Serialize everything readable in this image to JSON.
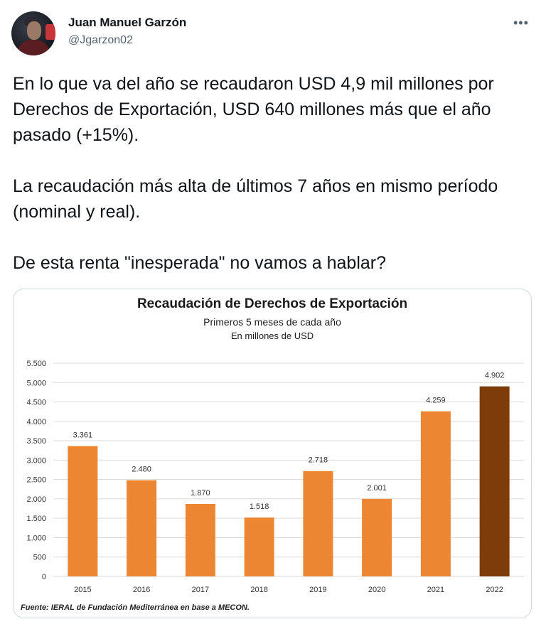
{
  "tweet": {
    "author_name": "Juan Manuel Garzón",
    "handle": "@Jgarzon02",
    "more_icon": "more-icon",
    "paragraphs": [
      "En lo que va del año se recaudaron USD 4,9 mil millones por Derechos de Exportación, USD 640 millones más que el año pasado (+15%).",
      "La recaudación más alta de últimos 7 años en mismo período (nominal y real).",
      "De esta renta \"inesperada\" no vamos a hablar?"
    ]
  },
  "chart": {
    "title": "Recaudación de Derechos de Exportación",
    "subtitle": "Primeros 5 meses de cada año",
    "unit": "En millones de USD",
    "source": "Fuente: IERAL de Fundación Mediterránea en base a MECON."
  },
  "chart_data": {
    "type": "bar",
    "categories": [
      "2015",
      "2016",
      "2017",
      "2018",
      "2019",
      "2020",
      "2021",
      "2022"
    ],
    "values": [
      3361,
      2480,
      1870,
      1518,
      2718,
      2001,
      4259,
      4902
    ],
    "value_labels": [
      "3.361",
      "2.480",
      "1.870",
      "1.518",
      "2.718",
      "2.001",
      "4.259",
      "4.902"
    ],
    "yticks": [
      0,
      500,
      1000,
      1500,
      2000,
      2500,
      3000,
      3500,
      4000,
      4500,
      5000,
      5500
    ],
    "ytick_labels": [
      "0",
      "500",
      "1.000",
      "1.500",
      "2.000",
      "2.500",
      "3.000",
      "3.500",
      "4.000",
      "4.500",
      "5.000",
      "5.500"
    ],
    "ylim": [
      0,
      5500
    ],
    "grid": true,
    "colors": {
      "bar": "#ed8633",
      "highlight": "#7f3c0b",
      "grid": "#d9d9d9"
    },
    "highlight_index": 7
  }
}
